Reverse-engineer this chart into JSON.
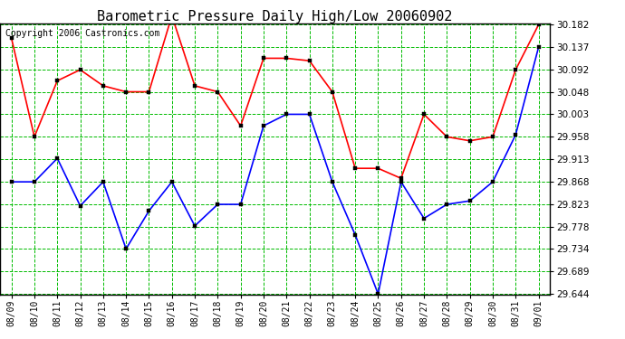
{
  "title": "Barometric Pressure Daily High/Low 20060902",
  "copyright": "Copyright 2006 Castronics.com",
  "dates": [
    "08/09",
    "08/10",
    "08/11",
    "08/12",
    "08/13",
    "08/14",
    "08/15",
    "08/16",
    "08/17",
    "08/18",
    "08/19",
    "08/20",
    "08/21",
    "08/22",
    "08/23",
    "08/24",
    "08/25",
    "08/26",
    "08/27",
    "08/28",
    "08/29",
    "08/30",
    "08/31",
    "09/01"
  ],
  "high": [
    30.155,
    29.958,
    30.07,
    30.092,
    30.06,
    30.048,
    30.048,
    30.2,
    30.06,
    30.048,
    29.98,
    30.115,
    30.115,
    30.11,
    30.048,
    29.895,
    29.895,
    29.875,
    30.003,
    29.958,
    29.95,
    29.958,
    30.092,
    30.182
  ],
  "low": [
    29.868,
    29.868,
    29.915,
    29.82,
    29.868,
    29.734,
    29.81,
    29.868,
    29.78,
    29.823,
    29.823,
    29.98,
    30.003,
    30.003,
    29.868,
    29.762,
    29.644,
    29.868,
    29.795,
    29.823,
    29.83,
    29.868,
    29.962,
    30.137
  ],
  "ylim_min": 29.644,
  "ylim_max": 30.182,
  "yticks": [
    29.644,
    29.689,
    29.734,
    29.778,
    29.823,
    29.868,
    29.913,
    29.958,
    30.003,
    30.048,
    30.092,
    30.137,
    30.182
  ],
  "high_color": "#ff0000",
  "low_color": "#0000ff",
  "grid_color": "#00bb00",
  "bg_color": "#ffffff",
  "title_fontsize": 11,
  "copyright_fontsize": 7
}
